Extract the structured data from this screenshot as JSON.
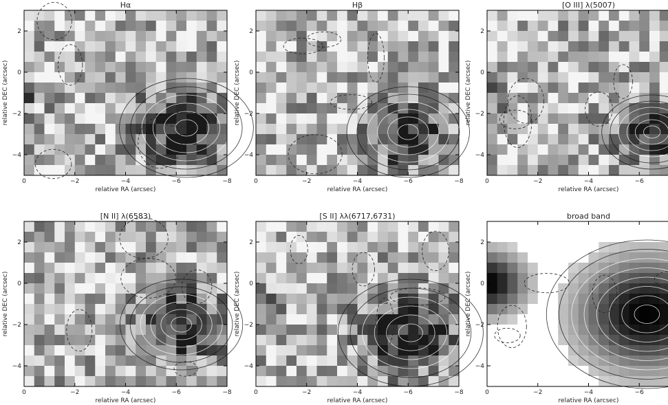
{
  "figure": {
    "panels": [
      {
        "title": "Hα",
        "feature": [
          -6.4,
          -2.7
        ],
        "sigma": 1.2,
        "edge": true,
        "seed": 11
      },
      {
        "title": "Hβ",
        "feature": [
          -6.0,
          -2.9
        ],
        "sigma": 1.1,
        "edge": false,
        "seed": 23
      },
      {
        "title": "[O III] λ(5007)",
        "feature": [
          -6.5,
          -2.9
        ],
        "sigma": 0.9,
        "edge": true,
        "seed": 37
      },
      {
        "title": "[N II] λ(6583)",
        "feature": [
          -6.2,
          -2.0
        ],
        "sigma": 1.1,
        "edge": false,
        "seed": 41
      },
      {
        "title": "[S II] λλ(6717,6731)",
        "feature": [
          -6.1,
          -2.4
        ],
        "sigma": 1.3,
        "edge": true,
        "seed": 53
      },
      {
        "title": "broad band",
        "feature": [
          -6.3,
          -1.5
        ],
        "sigma": 1.8,
        "edge": true,
        "seed": 67
      }
    ],
    "x_label": "relative RA (arcsec)",
    "y_label": "relative DEC (arcsec)",
    "x_ticks": [
      "0",
      "−2",
      "−4",
      "−6",
      "−8"
    ],
    "y_ticks": [
      "2",
      "0",
      "−2",
      "−4"
    ]
  },
  "chart_data": {
    "type": "heatmap",
    "x_range": [
      0,
      -8
    ],
    "y_range": [
      -5,
      3
    ],
    "x_ticks": [
      0,
      -2,
      -4,
      -6,
      -8
    ],
    "y_ticks": [
      2,
      0,
      -2,
      -4
    ],
    "panels": [
      {
        "title": "Hα",
        "peak_ra": -6.4,
        "peak_dec": -2.7
      },
      {
        "title": "Hβ",
        "peak_ra": -6.0,
        "peak_dec": -2.9
      },
      {
        "title": "[O III] λ(5007)",
        "peak_ra": -6.5,
        "peak_dec": -2.9
      },
      {
        "title": "[N II] λ(6583)",
        "peak_ra": -6.2,
        "peak_dec": -2.0
      },
      {
        "title": "[S II] λλ(6717,6731)",
        "peak_ra": -6.1,
        "peak_dec": -2.4
      },
      {
        "title": "broad band",
        "peak_ra": -6.3,
        "peak_dec": -1.5
      }
    ]
  }
}
